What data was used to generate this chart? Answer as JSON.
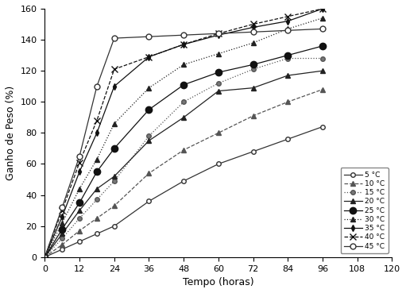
{
  "xlabel": "Tempo (horas)",
  "ylabel": "Ganho de Peso (%)",
  "xlim": [
    0,
    120
  ],
  "ylim": [
    0,
    160
  ],
  "xticks": [
    0,
    12,
    24,
    36,
    48,
    60,
    72,
    84,
    96,
    108,
    120
  ],
  "yticks": [
    0,
    20,
    40,
    60,
    80,
    100,
    120,
    140,
    160
  ],
  "series": [
    {
      "label": "5 °C",
      "linestyle": "-",
      "marker": "o",
      "markerfacecolor": "white",
      "markeredgecolor": "#333333",
      "markersize": 4,
      "color": "#333333",
      "x": [
        0,
        6,
        12,
        18,
        24,
        36,
        48,
        60,
        72,
        84,
        96
      ],
      "y": [
        0,
        5,
        10,
        15,
        20,
        36,
        49,
        60,
        68,
        76,
        84
      ]
    },
    {
      "label": "10 °C",
      "linestyle": "--",
      "marker": "^",
      "markerfacecolor": "#555555",
      "markeredgecolor": "#555555",
      "markersize": 4,
      "color": "#555555",
      "x": [
        0,
        6,
        12,
        18,
        24,
        36,
        48,
        60,
        72,
        84,
        96
      ],
      "y": [
        0,
        8,
        17,
        25,
        33,
        54,
        69,
        80,
        91,
        100,
        108
      ]
    },
    {
      "label": "15 °C",
      "linestyle": ":",
      "marker": "o",
      "markerfacecolor": "#777777",
      "markeredgecolor": "#555555",
      "markersize": 4,
      "color": "#555555",
      "x": [
        0,
        6,
        12,
        18,
        24,
        36,
        48,
        60,
        72,
        84,
        96
      ],
      "y": [
        0,
        12,
        25,
        37,
        49,
        78,
        100,
        112,
        121,
        128,
        128
      ]
    },
    {
      "label": "20 °C",
      "linestyle": "-",
      "marker": "^",
      "markerfacecolor": "#222222",
      "markeredgecolor": "#222222",
      "markersize": 5,
      "color": "#222222",
      "x": [
        0,
        6,
        12,
        18,
        24,
        36,
        48,
        60,
        72,
        84,
        96
      ],
      "y": [
        0,
        15,
        30,
        44,
        52,
        75,
        90,
        107,
        109,
        117,
        120
      ]
    },
    {
      "label": "25 °C",
      "linestyle": "-",
      "marker": "o",
      "markerfacecolor": "#111111",
      "markeredgecolor": "#111111",
      "markersize": 6,
      "color": "#111111",
      "x": [
        0,
        6,
        12,
        18,
        24,
        36,
        48,
        60,
        72,
        84,
        96
      ],
      "y": [
        0,
        18,
        35,
        55,
        70,
        95,
        111,
        119,
        124,
        130,
        136
      ]
    },
    {
      "label": "30 °C",
      "linestyle": ":",
      "marker": "^",
      "markerfacecolor": "#222222",
      "markeredgecolor": "#222222",
      "markersize": 5,
      "color": "#222222",
      "x": [
        0,
        6,
        12,
        18,
        24,
        36,
        48,
        60,
        72,
        84,
        96
      ],
      "y": [
        0,
        22,
        44,
        63,
        86,
        109,
        124,
        131,
        138,
        147,
        154
      ]
    },
    {
      "label": "35 °C",
      "linestyle": "-",
      "marker": "d",
      "markerfacecolor": "#111111",
      "markeredgecolor": "#111111",
      "markersize": 4,
      "color": "#111111",
      "x": [
        0,
        6,
        12,
        18,
        24,
        36,
        48,
        60,
        72,
        84,
        96
      ],
      "y": [
        0,
        26,
        55,
        80,
        110,
        129,
        137,
        143,
        148,
        152,
        160
      ]
    },
    {
      "label": "40 °C",
      "linestyle": "--",
      "marker": "x",
      "markerfacecolor": "#111111",
      "markeredgecolor": "#111111",
      "markersize": 6,
      "color": "#111111",
      "x": [
        0,
        6,
        12,
        18,
        24,
        36,
        48,
        60,
        72,
        84,
        96
      ],
      "y": [
        0,
        30,
        61,
        88,
        121,
        129,
        137,
        144,
        150,
        155,
        160
      ]
    },
    {
      "label": "45 °C",
      "linestyle": "-",
      "marker": "o",
      "markerfacecolor": "white",
      "markeredgecolor": "#333333",
      "markersize": 5,
      "color": "#333333",
      "x": [
        0,
        6,
        12,
        18,
        24,
        36,
        48,
        60,
        72,
        84,
        96
      ],
      "y": [
        0,
        32,
        65,
        110,
        141,
        142,
        143,
        144,
        145,
        146,
        147
      ]
    }
  ]
}
